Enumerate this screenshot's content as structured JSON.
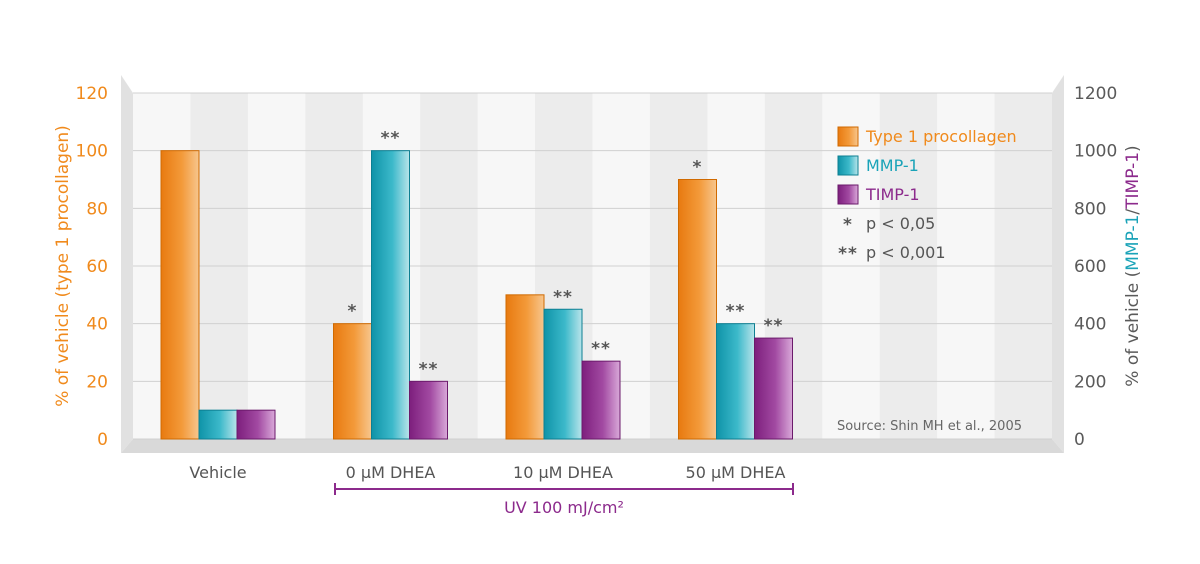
{
  "chart_data": {
    "type": "bar",
    "categories": [
      "Vehicle",
      "0 µM DHEA",
      "10 µM DHEA",
      "50 µM DHEA"
    ],
    "series": [
      {
        "name": "Type 1 procollagen",
        "axis": "left",
        "color": "#f08a1c",
        "values": [
          100,
          40,
          50,
          90
        ],
        "significance": [
          "",
          "*",
          "",
          "*"
        ]
      },
      {
        "name": "MMP-1",
        "axis": "right",
        "color": "#1aa3b8",
        "values": [
          100,
          1000,
          450,
          400
        ],
        "significance": [
          "",
          "**",
          "**",
          "**"
        ]
      },
      {
        "name": "TIMP-1",
        "axis": "right",
        "color": "#8c2a8c",
        "values": [
          100,
          200,
          270,
          350
        ],
        "significance": [
          "",
          "**",
          "**",
          "**"
        ]
      }
    ],
    "y_left": {
      "label": "% of vehicle (type 1 procollagen)",
      "ylim": [
        0,
        120
      ],
      "ticks": [
        "0",
        "20",
        "40",
        "60",
        "80",
        "100",
        "120"
      ],
      "color": "#f08a1c"
    },
    "y_right": {
      "label_prefix": "% of vehicle (",
      "label_highlight": "MMP-1",
      "label_mid": "/",
      "label_highlight2": "TIMP-1",
      "label_suffix": ")",
      "ylim": [
        0,
        1200
      ],
      "ticks": [
        "0",
        "200",
        "400",
        "600",
        "800",
        "1000",
        "1200"
      ],
      "color": "#5a5a5a"
    },
    "legend": {
      "placement": "top-right",
      "entries": [
        {
          "label": "Type 1 procollagen",
          "color": "#f08a1c"
        },
        {
          "label": "MMP-1",
          "color": "#1aa3b8"
        },
        {
          "label": "TIMP-1",
          "color": "#8c2a8c"
        }
      ],
      "sig_entries": [
        {
          "symbol": "*",
          "label": "p < 0,05"
        },
        {
          "symbol": "**",
          "label": "p < 0,001"
        }
      ]
    },
    "source": "Source: Shin MH et al., 2005",
    "bracket": {
      "label": "UV 100 mJ/cm²",
      "from_category": 1,
      "to_category": 3,
      "color": "#8c2a8c"
    },
    "grid": true
  }
}
